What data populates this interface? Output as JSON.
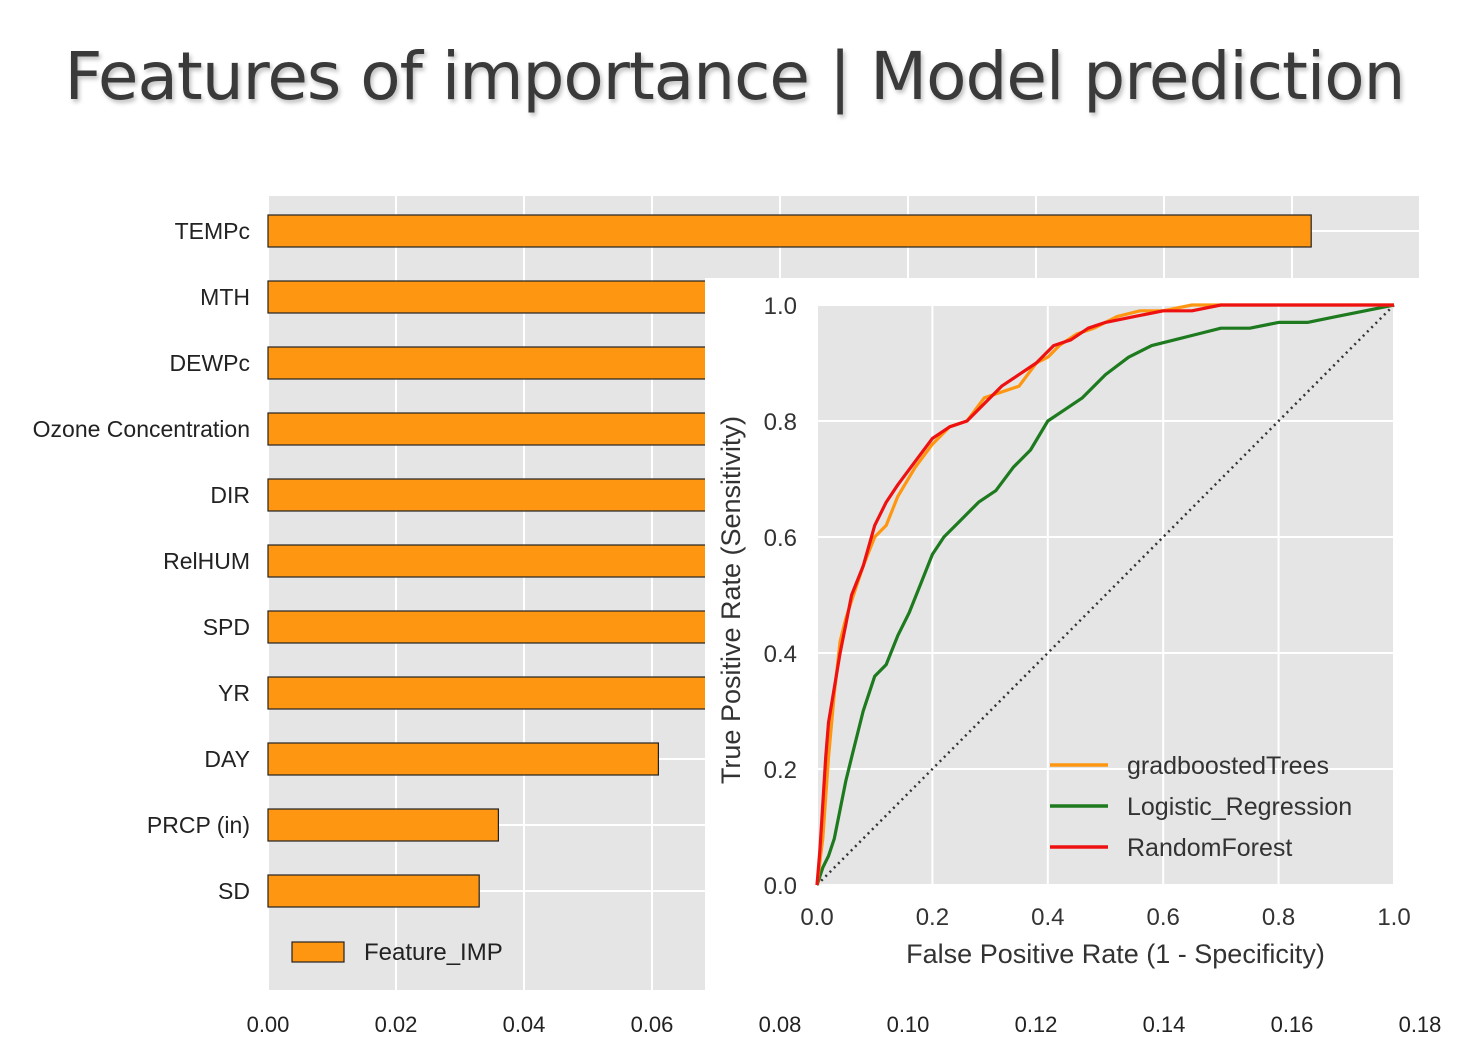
{
  "slide": {
    "title": "Features of importance | Model prediction"
  },
  "chart_data": [
    {
      "type": "bar",
      "orientation": "horizontal",
      "categories": [
        "TEMPc",
        "MTH",
        "DEWPc",
        "Ozone Concentration",
        "DIR",
        "RelHUM",
        "SPD",
        "YR",
        "DAY",
        "PRCP (in)",
        "SD"
      ],
      "series": [
        {
          "name": "Feature_IMP",
          "values": [
            0.163,
            0.085,
            0.083,
            0.079,
            0.077,
            0.075,
            0.073,
            0.071,
            0.061,
            0.036,
            0.033
          ],
          "color": "#ff9611"
        }
      ],
      "xlim": [
        0,
        0.18
      ],
      "xticks": [
        "0.00",
        "0.02",
        "0.04",
        "0.06",
        "0.08",
        "0.10",
        "0.12",
        "0.14",
        "0.16",
        "0.18"
      ],
      "grid": true,
      "legend_position": "lower-left",
      "background": "#e5e5e5"
    },
    {
      "type": "line",
      "xlabel": "False Positive Rate (1 - Specificity)",
      "ylabel": "True Positive Rate (Sensitivity)",
      "xlim": [
        0,
        1
      ],
      "ylim": [
        0,
        1
      ],
      "xticks": [
        "0.0",
        "0.2",
        "0.4",
        "0.6",
        "0.8",
        "1.0"
      ],
      "yticks": [
        "0.0",
        "0.2",
        "0.4",
        "0.6",
        "0.8",
        "1.0"
      ],
      "grid": true,
      "legend_position": "lower-right",
      "background": "#e5e5e5",
      "series": [
        {
          "name": "gradboostedTrees",
          "color": "#ff9611",
          "x": [
            0,
            0.01,
            0.02,
            0.03,
            0.04,
            0.05,
            0.06,
            0.08,
            0.1,
            0.12,
            0.14,
            0.17,
            0.2,
            0.23,
            0.26,
            0.29,
            0.32,
            0.35,
            0.38,
            0.4,
            0.42,
            0.45,
            0.48,
            0.52,
            0.56,
            0.6,
            0.65,
            0.7,
            0.8,
            0.9,
            1.0
          ],
          "y": [
            0,
            0.08,
            0.22,
            0.33,
            0.42,
            0.46,
            0.49,
            0.55,
            0.6,
            0.62,
            0.67,
            0.72,
            0.76,
            0.79,
            0.8,
            0.84,
            0.85,
            0.86,
            0.9,
            0.91,
            0.93,
            0.95,
            0.96,
            0.98,
            0.99,
            0.99,
            1.0,
            1.0,
            1.0,
            1.0,
            1.0
          ]
        },
        {
          "name": "Logistic_Regression",
          "color": "#1e7a1e",
          "x": [
            0,
            0.01,
            0.02,
            0.03,
            0.04,
            0.05,
            0.06,
            0.08,
            0.1,
            0.12,
            0.14,
            0.16,
            0.18,
            0.2,
            0.22,
            0.25,
            0.28,
            0.31,
            0.34,
            0.37,
            0.4,
            0.43,
            0.46,
            0.5,
            0.54,
            0.58,
            0.62,
            0.66,
            0.7,
            0.75,
            0.8,
            0.85,
            0.9,
            0.95,
            1.0
          ],
          "y": [
            0,
            0.03,
            0.05,
            0.08,
            0.13,
            0.18,
            0.22,
            0.3,
            0.36,
            0.38,
            0.43,
            0.47,
            0.52,
            0.57,
            0.6,
            0.63,
            0.66,
            0.68,
            0.72,
            0.75,
            0.8,
            0.82,
            0.84,
            0.88,
            0.91,
            0.93,
            0.94,
            0.95,
            0.96,
            0.96,
            0.97,
            0.97,
            0.98,
            0.99,
            1.0
          ]
        },
        {
          "name": "RandomForest",
          "color": "#ee1111",
          "x": [
            0,
            0.005,
            0.01,
            0.015,
            0.02,
            0.03,
            0.04,
            0.05,
            0.06,
            0.08,
            0.1,
            0.12,
            0.14,
            0.17,
            0.2,
            0.23,
            0.26,
            0.29,
            0.32,
            0.35,
            0.38,
            0.41,
            0.44,
            0.47,
            0.5,
            0.55,
            0.6,
            0.65,
            0.7,
            0.8,
            0.9,
            1.0
          ],
          "y": [
            0,
            0.06,
            0.14,
            0.22,
            0.28,
            0.34,
            0.4,
            0.45,
            0.5,
            0.55,
            0.62,
            0.66,
            0.69,
            0.73,
            0.77,
            0.79,
            0.8,
            0.83,
            0.86,
            0.88,
            0.9,
            0.93,
            0.94,
            0.96,
            0.97,
            0.98,
            0.99,
            0.99,
            1.0,
            1.0,
            1.0,
            1.0
          ]
        }
      ],
      "reference_line": {
        "style": "dotted",
        "color": "#333333",
        "from": [
          0,
          0
        ],
        "to": [
          1,
          1
        ]
      }
    }
  ]
}
